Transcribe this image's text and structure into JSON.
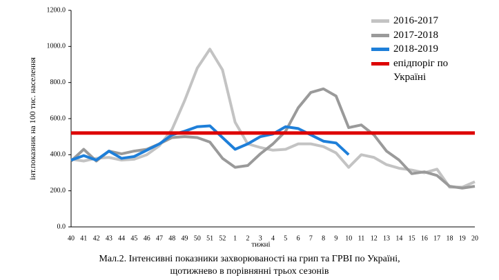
{
  "chart_data": {
    "type": "line",
    "y_label": "інт.показник на 100 тис. населення",
    "x_label": "тижні",
    "caption": [
      "Мал.2. Інтенсивні показники захворюваності на грип та ГРВІ по Україні,",
      "щотижнево в порівнянні трьох сезонів"
    ],
    "categories": [
      "40",
      "41",
      "42",
      "43",
      "44",
      "45",
      "46",
      "47",
      "48",
      "49",
      "50",
      "51",
      "52",
      "1",
      "2",
      "3",
      "4",
      "5",
      "6",
      "7",
      "8",
      "9",
      "10",
      "11",
      "12",
      "13",
      "14",
      "15",
      "16",
      "17",
      "18",
      "19",
      "20"
    ],
    "series": [
      {
        "name": "2016-2017",
        "color": "#c3c3c3",
        "values": [
          375,
          365,
          380,
          385,
          370,
          375,
          400,
          450,
          540,
          700,
          880,
          985,
          870,
          580,
          460,
          440,
          425,
          430,
          460,
          460,
          445,
          410,
          330,
          400,
          385,
          345,
          325,
          315,
          300,
          320,
          220,
          220,
          250
        ]
      },
      {
        "name": "2017-2018",
        "color": "#9a9a9a",
        "values": [
          365,
          430,
          365,
          420,
          405,
          420,
          430,
          460,
          495,
          500,
          495,
          470,
          380,
          330,
          340,
          405,
          460,
          530,
          660,
          745,
          765,
          725,
          550,
          565,
          510,
          420,
          370,
          295,
          305,
          285,
          225,
          215,
          225
        ]
      },
      {
        "name": "2018-2019",
        "color": "#1e7fd9",
        "values": [
          370,
          395,
          370,
          420,
          380,
          390,
          425,
          460,
          510,
          530,
          555,
          560,
          495,
          430,
          460,
          500,
          515,
          555,
          545,
          510,
          475,
          465,
          400,
          null,
          null,
          null,
          null,
          null,
          null,
          null,
          null,
          null,
          null
        ]
      }
    ],
    "threshold": {
      "name": "епідпоріг по Україні",
      "color": "#dd0000",
      "value": 520
    },
    "ylim": [
      0,
      1200
    ],
    "yticks": [
      {
        "value": 0,
        "label": "0.0"
      },
      {
        "value": 200,
        "label": "200.0"
      },
      {
        "value": 400,
        "label": "400.0"
      },
      {
        "value": 600,
        "label": "600.0"
      },
      {
        "value": 800,
        "label": "800.0"
      },
      {
        "value": 1000,
        "label": "1000.0"
      },
      {
        "value": 1200,
        "label": "1200.0"
      }
    ],
    "grid": false
  }
}
